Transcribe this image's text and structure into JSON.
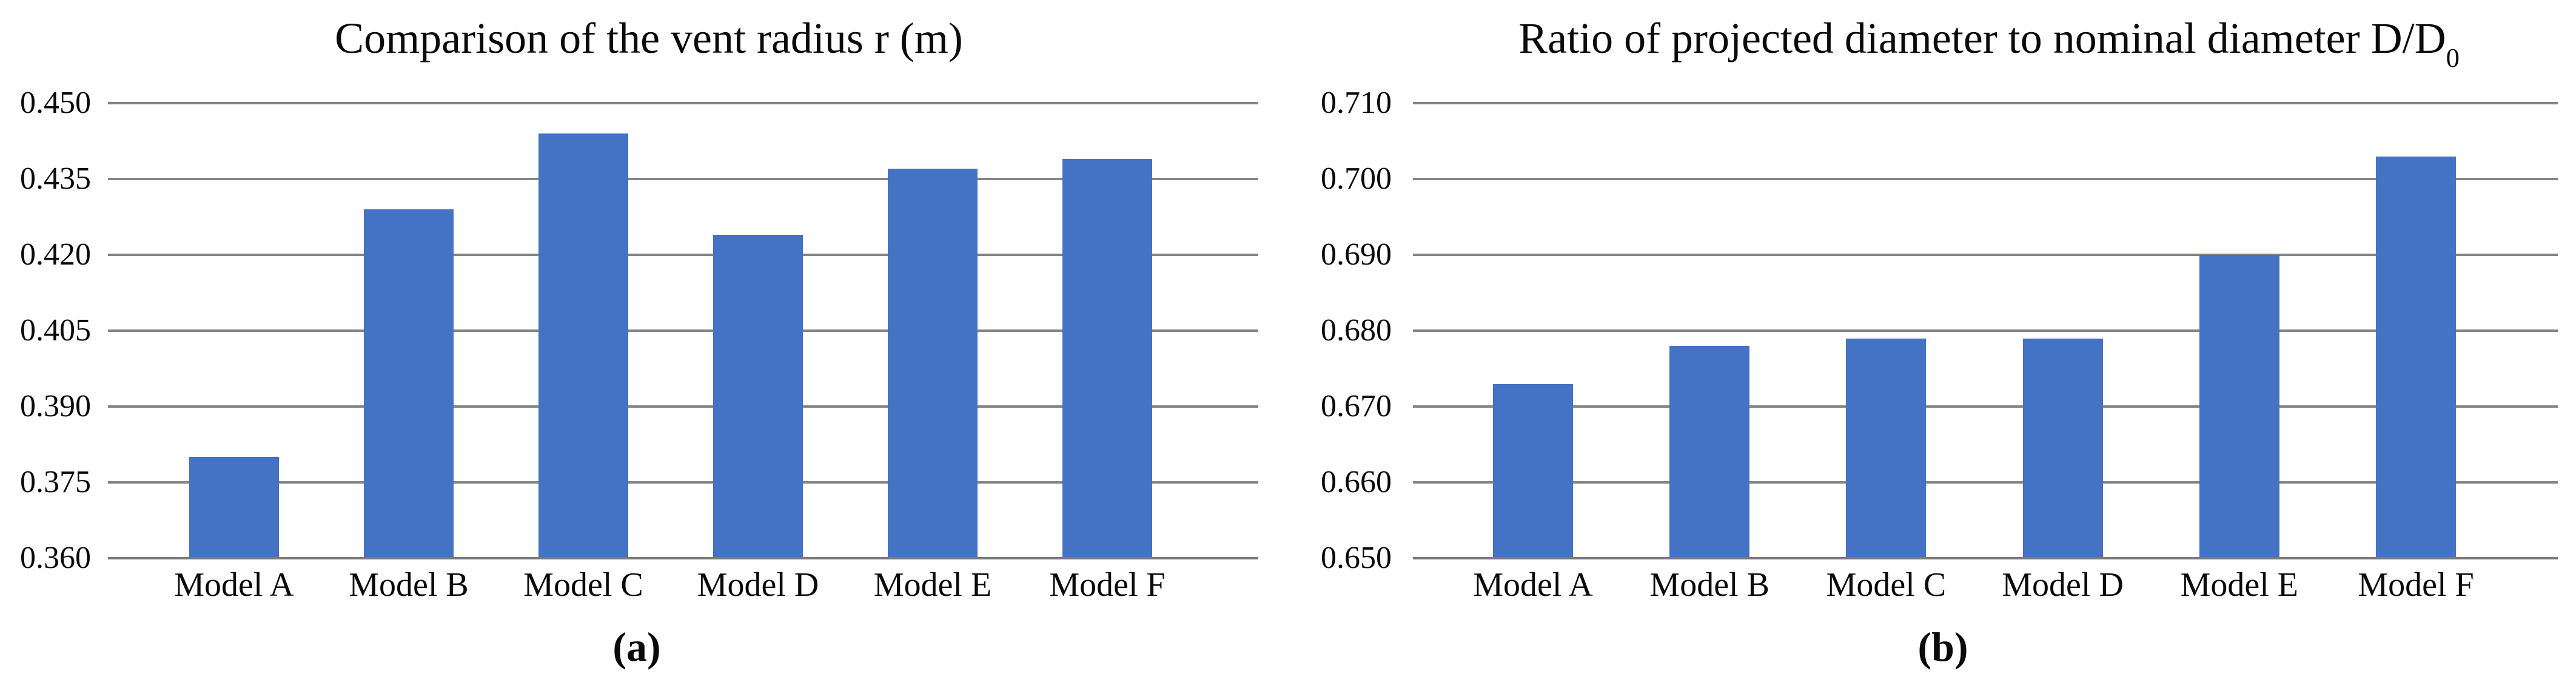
{
  "figure": {
    "background": "#ffffff",
    "text_color": "#000000"
  },
  "chart_data": [
    {
      "type": "bar",
      "panel": "a",
      "title": "Comparison of the vent radius r (m)",
      "title_sub": "",
      "caption": "(a)",
      "categories": [
        "Model A",
        "Model B",
        "Model C",
        "Model D",
        "Model E",
        "Model F"
      ],
      "values": [
        0.38,
        0.429,
        0.444,
        0.424,
        0.437,
        0.439
      ],
      "xlabel": "",
      "ylabel": "",
      "ylim": [
        0.36,
        0.45
      ],
      "ytick_step": 0.015,
      "yticks": [
        "0.450",
        "0.435",
        "0.420",
        "0.405",
        "0.390",
        "0.375",
        "0.360"
      ],
      "grid": "horizontal",
      "legend": "none",
      "bar_color": "#4472C4",
      "gridline_color": "#848484",
      "axis_color": "#7A7A7A"
    },
    {
      "type": "bar",
      "panel": "b",
      "title": "Ratio of projected diameter to nominal diameter D/D",
      "title_sub": "0",
      "caption": "(b)",
      "categories": [
        "Model A",
        "Model B",
        "Model C",
        "Model D",
        "Model E",
        "Model F"
      ],
      "values": [
        0.673,
        0.678,
        0.679,
        0.679,
        0.69,
        0.703
      ],
      "xlabel": "",
      "ylabel": "",
      "ylim": [
        0.65,
        0.71
      ],
      "ytick_step": 0.01,
      "yticks": [
        "0.710",
        "0.700",
        "0.690",
        "0.680",
        "0.670",
        "0.660",
        "0.650"
      ],
      "grid": "horizontal",
      "legend": "none",
      "bar_color": "#4472C4",
      "gridline_color": "#848484",
      "axis_color": "#7A7A7A"
    }
  ]
}
